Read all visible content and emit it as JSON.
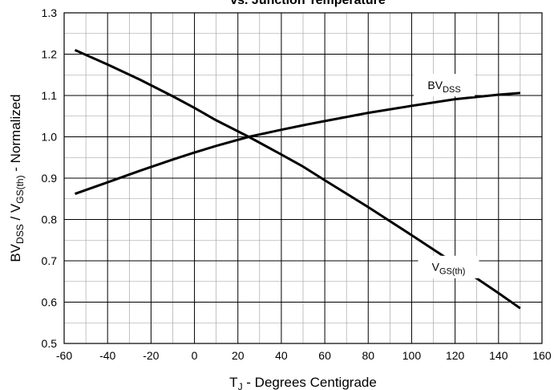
{
  "chart_data": {
    "type": "line",
    "title": "vs. Junction Temperature",
    "xlabel": "T",
    "xlabel_sub": "J",
    "xlabel_suffix": " - Degrees Centigrade",
    "ylabel_parts": [
      {
        "text": "BV",
        "sub": false
      },
      {
        "text": "DSS",
        "sub": true
      },
      {
        "text": " / V",
        "sub": false
      },
      {
        "text": "GS(th)",
        "sub": true
      },
      {
        "text": " - Normalized",
        "sub": false
      }
    ],
    "xlim": [
      -60,
      160
    ],
    "ylim": [
      0.5,
      1.3
    ],
    "x_major_step": 20,
    "x_minor_step": 10,
    "y_major_step": 0.1,
    "y_minor_step": 0.05,
    "x_tick_labels": [
      "-60",
      "-40",
      "-20",
      "0",
      "20",
      "40",
      "60",
      "80",
      "100",
      "120",
      "140",
      "160"
    ],
    "y_tick_labels": [
      "0.5",
      "0.6",
      "0.7",
      "0.8",
      "0.9",
      "1.0",
      "1.1",
      "1.2",
      "1.3"
    ],
    "grid": true,
    "series": [
      {
        "name": "BV",
        "name_sub": "DSS",
        "label_x": 115,
        "label_y": 1.125,
        "x": [
          -55,
          -40,
          -25,
          -10,
          0,
          10,
          25,
          40,
          50,
          60,
          80,
          100,
          120,
          140,
          150
        ],
        "y": [
          0.862,
          0.89,
          0.918,
          0.945,
          0.962,
          0.978,
          1.0,
          1.017,
          1.028,
          1.038,
          1.058,
          1.075,
          1.091,
          1.102,
          1.106
        ]
      },
      {
        "name": "V",
        "name_sub": "GS(th)",
        "label_x": 117,
        "label_y": 0.685,
        "x": [
          -55,
          -40,
          -25,
          -10,
          0,
          10,
          25,
          40,
          50,
          60,
          80,
          100,
          120,
          140,
          150
        ],
        "y": [
          1.21,
          1.175,
          1.138,
          1.098,
          1.07,
          1.04,
          1.0,
          0.957,
          0.928,
          0.895,
          0.83,
          0.762,
          0.693,
          0.622,
          0.585
        ]
      }
    ]
  }
}
